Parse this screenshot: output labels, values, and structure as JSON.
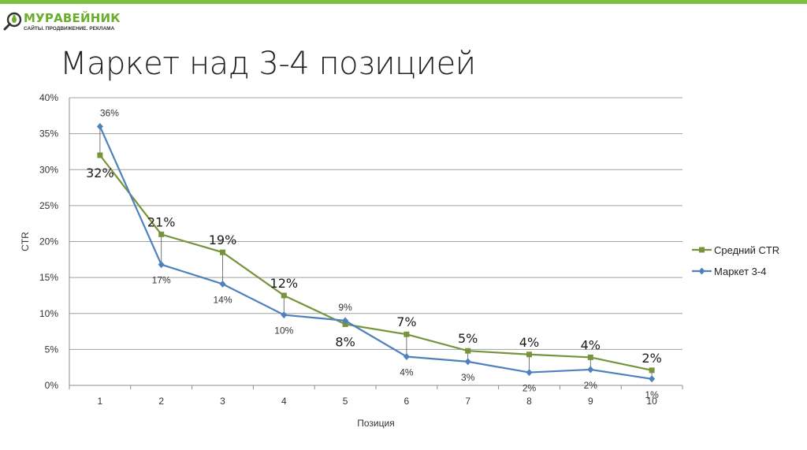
{
  "brand": {
    "name": "МУРАВЕЙНИК",
    "tagline": "САЙТЫ. ПРОДВИЖЕНИЕ. РЕКЛАМА",
    "accent_color": "#7dc142"
  },
  "slide": {
    "title": "Маркет над 3-4 позицией"
  },
  "chart_data": {
    "type": "line",
    "xlabel": "Позиция",
    "ylabel": "CTR",
    "ylim": [
      0,
      40
    ],
    "y_tick_step": 5,
    "y_unit": "%",
    "grid": "horizontal",
    "legend_position": "right",
    "x": [
      1,
      2,
      3,
      4,
      5,
      6,
      7,
      8,
      9,
      10
    ],
    "series": [
      {
        "name": "Средний CTR",
        "color": "#77933c",
        "marker": "square",
        "values": [
          32,
          21,
          18.5,
          12.5,
          8.5,
          7.1,
          4.8,
          4.3,
          3.9,
          2.1
        ],
        "labels": [
          "32%",
          "21%",
          "19%",
          "12%",
          "8%",
          "7%",
          "5%",
          "4%",
          "4%",
          "2%"
        ]
      },
      {
        "name": "Маркет 3-4",
        "color": "#4f81bd",
        "marker": "diamond",
        "values": [
          36,
          16.8,
          14.1,
          9.8,
          9,
          4,
          3.3,
          1.8,
          2.2,
          0.9
        ],
        "labels": [
          "36%",
          "17%",
          "14%",
          "10%",
          "9%",
          "4%",
          "3%",
          "2%",
          "2%",
          "1%"
        ]
      }
    ]
  }
}
